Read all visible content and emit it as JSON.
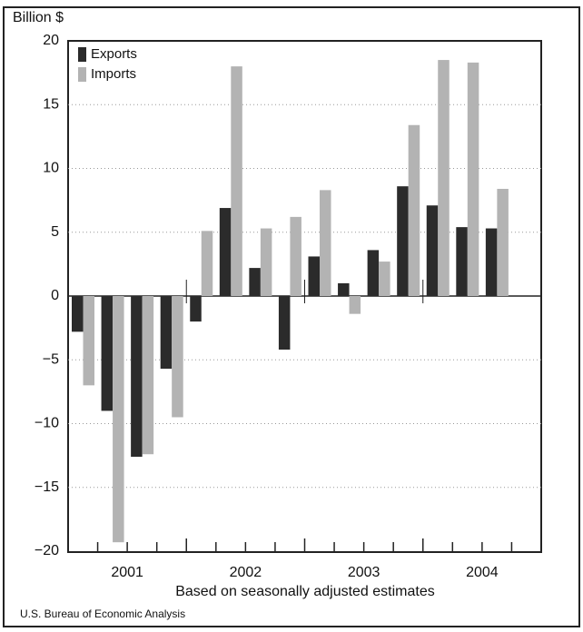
{
  "chart_data": {
    "type": "bar",
    "y_label": "Billion $",
    "x_label": "Based on seasonally adjusted estimates",
    "source": "U.S. Bureau of Economic Analysis",
    "categories": [
      null,
      null,
      null,
      null,
      null,
      null,
      null,
      null,
      null,
      null,
      null,
      null,
      null,
      null,
      null,
      null
    ],
    "year_labels": [
      "2001",
      "2002",
      "2003",
      "2004"
    ],
    "series": [
      {
        "name": "Exports",
        "color": "#2b2b2b",
        "values": [
          -2.8,
          -9.0,
          -12.6,
          -5.7,
          -2.0,
          6.9,
          2.2,
          -4.2,
          3.1,
          1.0,
          3.6,
          8.6,
          7.1,
          5.4,
          5.3,
          null
        ]
      },
      {
        "name": "Imports",
        "color": "#b3b3b3",
        "values": [
          -7.0,
          -19.3,
          -12.4,
          -9.5,
          5.1,
          18.0,
          5.3,
          6.2,
          8.3,
          -1.4,
          2.7,
          13.4,
          18.5,
          18.3,
          8.4,
          null
        ]
      }
    ],
    "ylim": [
      -20,
      20
    ],
    "yticks": [
      {
        "value": -20,
        "label": "−20"
      },
      {
        "value": -15,
        "label": "−15"
      },
      {
        "value": -10,
        "label": "−10"
      },
      {
        "value": -5,
        "label": "−5"
      },
      0,
      5,
      10,
      15,
      20
    ],
    "grid": true,
    "legend": "top-left"
  }
}
